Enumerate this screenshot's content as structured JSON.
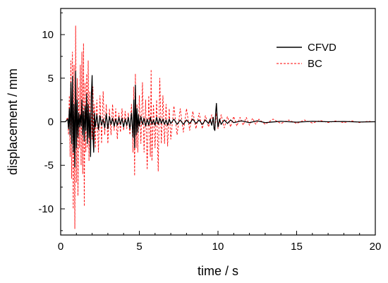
{
  "chart_data": {
    "type": "line",
    "title": "",
    "xlabel": "time / s",
    "ylabel": "displacement / mm",
    "xlim": [
      0,
      20
    ],
    "ylim": [
      -13,
      13
    ],
    "x_ticks": [
      0,
      5,
      10,
      15,
      20
    ],
    "y_ticks": [
      -10,
      -5,
      0,
      5,
      10
    ],
    "grid": false,
    "legend_position": "top-right",
    "series": [
      {
        "name": "CFVD",
        "color": "#000000",
        "style": "solid",
        "points": [
          [
            0,
            0
          ],
          [
            0.3,
            0
          ],
          [
            0.45,
            0.3
          ],
          [
            0.5,
            -0.8
          ],
          [
            0.55,
            1.5
          ],
          [
            0.6,
            -1.5
          ],
          [
            0.65,
            4.5
          ],
          [
            0.7,
            -2.5
          ],
          [
            0.75,
            5.2
          ],
          [
            0.8,
            -3.5
          ],
          [
            0.85,
            2.0
          ],
          [
            0.9,
            -5.2
          ],
          [
            0.95,
            5.8
          ],
          [
            1.0,
            -3.0
          ],
          [
            1.05,
            2.5
          ],
          [
            1.1,
            -1.8
          ],
          [
            1.15,
            1.0
          ],
          [
            1.2,
            -0.6
          ],
          [
            1.25,
            0.8
          ],
          [
            1.3,
            -0.5
          ],
          [
            1.35,
            2.5
          ],
          [
            1.4,
            -1.5
          ],
          [
            1.45,
            1.2
          ],
          [
            1.5,
            -2.2
          ],
          [
            1.55,
            1.8
          ],
          [
            1.6,
            -1.0
          ],
          [
            1.65,
            3.2
          ],
          [
            1.7,
            -2.5
          ],
          [
            1.75,
            2.0
          ],
          [
            1.8,
            -1.8
          ],
          [
            1.85,
            1.0
          ],
          [
            1.9,
            -4.0
          ],
          [
            1.95,
            3.0
          ],
          [
            2.0,
            5.3
          ],
          [
            2.05,
            -1.5
          ],
          [
            2.1,
            -3.5
          ],
          [
            2.15,
            1.0
          ],
          [
            2.2,
            -0.6
          ],
          [
            2.3,
            0.8
          ],
          [
            2.4,
            -0.9
          ],
          [
            2.5,
            0.7
          ],
          [
            2.6,
            -0.4
          ],
          [
            2.7,
            0.3
          ],
          [
            2.8,
            -0.7
          ],
          [
            2.9,
            0.9
          ],
          [
            3.0,
            -0.8
          ],
          [
            3.1,
            0.6
          ],
          [
            3.2,
            -0.3
          ],
          [
            3.3,
            0.4
          ],
          [
            3.4,
            -0.5
          ],
          [
            3.5,
            0.3
          ],
          [
            3.6,
            -0.4
          ],
          [
            3.7,
            0.5
          ],
          [
            3.8,
            -0.3
          ],
          [
            3.9,
            0.4
          ],
          [
            4.0,
            -0.6
          ],
          [
            4.1,
            0.3
          ],
          [
            4.2,
            -0.4
          ],
          [
            4.3,
            0.5
          ],
          [
            4.4,
            -0.8
          ],
          [
            4.5,
            1.0
          ],
          [
            4.6,
            -1.8
          ],
          [
            4.65,
            2.5
          ],
          [
            4.7,
            -3.0
          ],
          [
            4.75,
            4.2
          ],
          [
            4.8,
            -1.5
          ],
          [
            4.85,
            1.5
          ],
          [
            4.9,
            -1.2
          ],
          [
            4.95,
            0.8
          ],
          [
            5.0,
            -0.5
          ],
          [
            5.1,
            0.6
          ],
          [
            5.2,
            -0.3
          ],
          [
            5.3,
            0.4
          ],
          [
            5.4,
            -0.5
          ],
          [
            5.5,
            0.3
          ],
          [
            5.6,
            -0.4
          ],
          [
            5.7,
            0.5
          ],
          [
            5.8,
            -0.3
          ],
          [
            5.9,
            0.2
          ],
          [
            6.0,
            -0.4
          ],
          [
            6.1,
            0.5
          ],
          [
            6.2,
            -0.3
          ],
          [
            6.3,
            0.4
          ],
          [
            6.4,
            -0.2
          ],
          [
            6.5,
            0.3
          ],
          [
            6.6,
            -0.3
          ],
          [
            6.7,
            0.2
          ],
          [
            6.8,
            -0.4
          ],
          [
            6.9,
            0.3
          ],
          [
            7.0,
            -0.2
          ],
          [
            7.2,
            0.3
          ],
          [
            7.4,
            -0.3
          ],
          [
            7.6,
            0.2
          ],
          [
            7.8,
            -0.3
          ],
          [
            8.0,
            0.2
          ],
          [
            8.2,
            -0.2
          ],
          [
            8.4,
            0.3
          ],
          [
            8.6,
            -0.2
          ],
          [
            8.8,
            0.2
          ],
          [
            9.0,
            -0.3
          ],
          [
            9.2,
            0.2
          ],
          [
            9.4,
            -0.2
          ],
          [
            9.5,
            0.3
          ],
          [
            9.6,
            -0.4
          ],
          [
            9.7,
            0.5
          ],
          [
            9.75,
            -0.8
          ],
          [
            9.8,
            -1.0
          ],
          [
            9.85,
            1.0
          ],
          [
            9.9,
            2.1
          ],
          [
            9.95,
            0.5
          ],
          [
            10.0,
            -0.6
          ],
          [
            10.1,
            0.3
          ],
          [
            10.2,
            -0.3
          ],
          [
            10.4,
            0.2
          ],
          [
            10.6,
            -0.2
          ],
          [
            10.8,
            0.2
          ],
          [
            11.0,
            -0.1
          ],
          [
            11.5,
            0.1
          ],
          [
            12.0,
            -0.1
          ],
          [
            12.5,
            0.1
          ],
          [
            13.0,
            -0.1
          ],
          [
            14.0,
            0.05
          ],
          [
            15.0,
            -0.05
          ],
          [
            16.0,
            0.05
          ],
          [
            17.0,
            0
          ],
          [
            18.0,
            0.03
          ],
          [
            19.0,
            -0.03
          ],
          [
            20.0,
            0
          ]
        ]
      },
      {
        "name": "BC",
        "color": "#ff0000",
        "style": "dashed",
        "points": [
          [
            0,
            0
          ],
          [
            0.3,
            0
          ],
          [
            0.45,
            0.5
          ],
          [
            0.5,
            -1.5
          ],
          [
            0.55,
            3.0
          ],
          [
            0.6,
            -4.0
          ],
          [
            0.65,
            7.0
          ],
          [
            0.7,
            -6.5
          ],
          [
            0.75,
            8.0
          ],
          [
            0.8,
            -10.0
          ],
          [
            0.85,
            6.5
          ],
          [
            0.9,
            -12.3
          ],
          [
            0.95,
            11.0
          ],
          [
            1.0,
            -7.0
          ],
          [
            1.05,
            5.0
          ],
          [
            1.1,
            -8.5
          ],
          [
            1.15,
            4.0
          ],
          [
            1.2,
            -3.0
          ],
          [
            1.25,
            6.5
          ],
          [
            1.3,
            -5.0
          ],
          [
            1.35,
            8.0
          ],
          [
            1.4,
            -6.0
          ],
          [
            1.45,
            9.0
          ],
          [
            1.5,
            -9.7
          ],
          [
            1.55,
            4.5
          ],
          [
            1.6,
            -3.5
          ],
          [
            1.65,
            5.5
          ],
          [
            1.7,
            -3.0
          ],
          [
            1.75,
            7.0
          ],
          [
            1.8,
            -4.5
          ],
          [
            1.85,
            3.5
          ],
          [
            1.9,
            -4.0
          ],
          [
            1.95,
            2.5
          ],
          [
            2.0,
            -2.0
          ],
          [
            2.05,
            4.0
          ],
          [
            2.1,
            -2.5
          ],
          [
            2.15,
            2.0
          ],
          [
            2.2,
            -3.0
          ],
          [
            2.3,
            2.5
          ],
          [
            2.4,
            -3.5
          ],
          [
            2.5,
            3.0
          ],
          [
            2.6,
            -2.5
          ],
          [
            2.7,
            3.5
          ],
          [
            2.8,
            -1.5
          ],
          [
            2.9,
            2.0
          ],
          [
            3.0,
            -2.5
          ],
          [
            3.1,
            1.5
          ],
          [
            3.2,
            -1.5
          ],
          [
            3.3,
            2.0
          ],
          [
            3.4,
            -1.0
          ],
          [
            3.5,
            1.5
          ],
          [
            3.6,
            -2.0
          ],
          [
            3.7,
            1.0
          ],
          [
            3.8,
            -1.2
          ],
          [
            3.9,
            1.5
          ],
          [
            4.0,
            -1.0
          ],
          [
            4.1,
            1.2
          ],
          [
            4.2,
            -0.8
          ],
          [
            4.3,
            1.0
          ],
          [
            4.4,
            -1.5
          ],
          [
            4.5,
            2.0
          ],
          [
            4.6,
            -3.5
          ],
          [
            4.65,
            4.0
          ],
          [
            4.7,
            -6.2
          ],
          [
            4.75,
            5.5
          ],
          [
            4.8,
            -3.0
          ],
          [
            4.85,
            2.0
          ],
          [
            4.9,
            -3.5
          ],
          [
            5.0,
            3.0
          ],
          [
            5.1,
            -2.5
          ],
          [
            5.2,
            4.5
          ],
          [
            5.3,
            -3.5
          ],
          [
            5.4,
            2.5
          ],
          [
            5.5,
            -5.5
          ],
          [
            5.6,
            3.0
          ],
          [
            5.7,
            -4.0
          ],
          [
            5.75,
            6.0
          ],
          [
            5.8,
            -4.5
          ],
          [
            5.9,
            2.0
          ],
          [
            6.0,
            -3.0
          ],
          [
            6.1,
            2.5
          ],
          [
            6.2,
            -5.7
          ],
          [
            6.3,
            5.0
          ],
          [
            6.4,
            -2.5
          ],
          [
            6.5,
            3.0
          ],
          [
            6.6,
            -2.5
          ],
          [
            6.7,
            2.0
          ],
          [
            6.8,
            -2.8
          ],
          [
            6.9,
            1.5
          ],
          [
            7.0,
            -2.0
          ],
          [
            7.2,
            1.8
          ],
          [
            7.4,
            -1.5
          ],
          [
            7.6,
            1.5
          ],
          [
            7.8,
            -1.2
          ],
          [
            8.0,
            1.5
          ],
          [
            8.2,
            -1.0
          ],
          [
            8.4,
            1.2
          ],
          [
            8.6,
            -0.8
          ],
          [
            8.8,
            1.0
          ],
          [
            9.0,
            -0.8
          ],
          [
            9.2,
            0.7
          ],
          [
            9.4,
            -0.6
          ],
          [
            9.6,
            0.8
          ],
          [
            9.8,
            -1.0
          ],
          [
            9.9,
            1.0
          ],
          [
            10.0,
            -0.8
          ],
          [
            10.2,
            0.8
          ],
          [
            10.4,
            -0.7
          ],
          [
            10.6,
            0.6
          ],
          [
            10.8,
            -0.6
          ],
          [
            11.0,
            0.6
          ],
          [
            11.2,
            -0.5
          ],
          [
            11.4,
            0.5
          ],
          [
            11.6,
            -0.4
          ],
          [
            11.8,
            0.5
          ],
          [
            12.0,
            -0.4
          ],
          [
            12.2,
            0.4
          ],
          [
            12.4,
            -0.3
          ],
          [
            12.6,
            0.3
          ],
          [
            13.0,
            -0.3
          ],
          [
            13.5,
            0.3
          ],
          [
            14.0,
            -0.2
          ],
          [
            14.5,
            0.2
          ],
          [
            15.0,
            -0.2
          ],
          [
            15.5,
            0.2
          ],
          [
            16.0,
            -0.15
          ],
          [
            16.5,
            0.15
          ],
          [
            17.0,
            -0.1
          ],
          [
            17.5,
            0.1
          ],
          [
            18.0,
            -0.1
          ],
          [
            18.5,
            0.1
          ],
          [
            19.0,
            -0.1
          ],
          [
            19.5,
            0.05
          ],
          [
            20.0,
            0
          ]
        ]
      }
    ]
  }
}
